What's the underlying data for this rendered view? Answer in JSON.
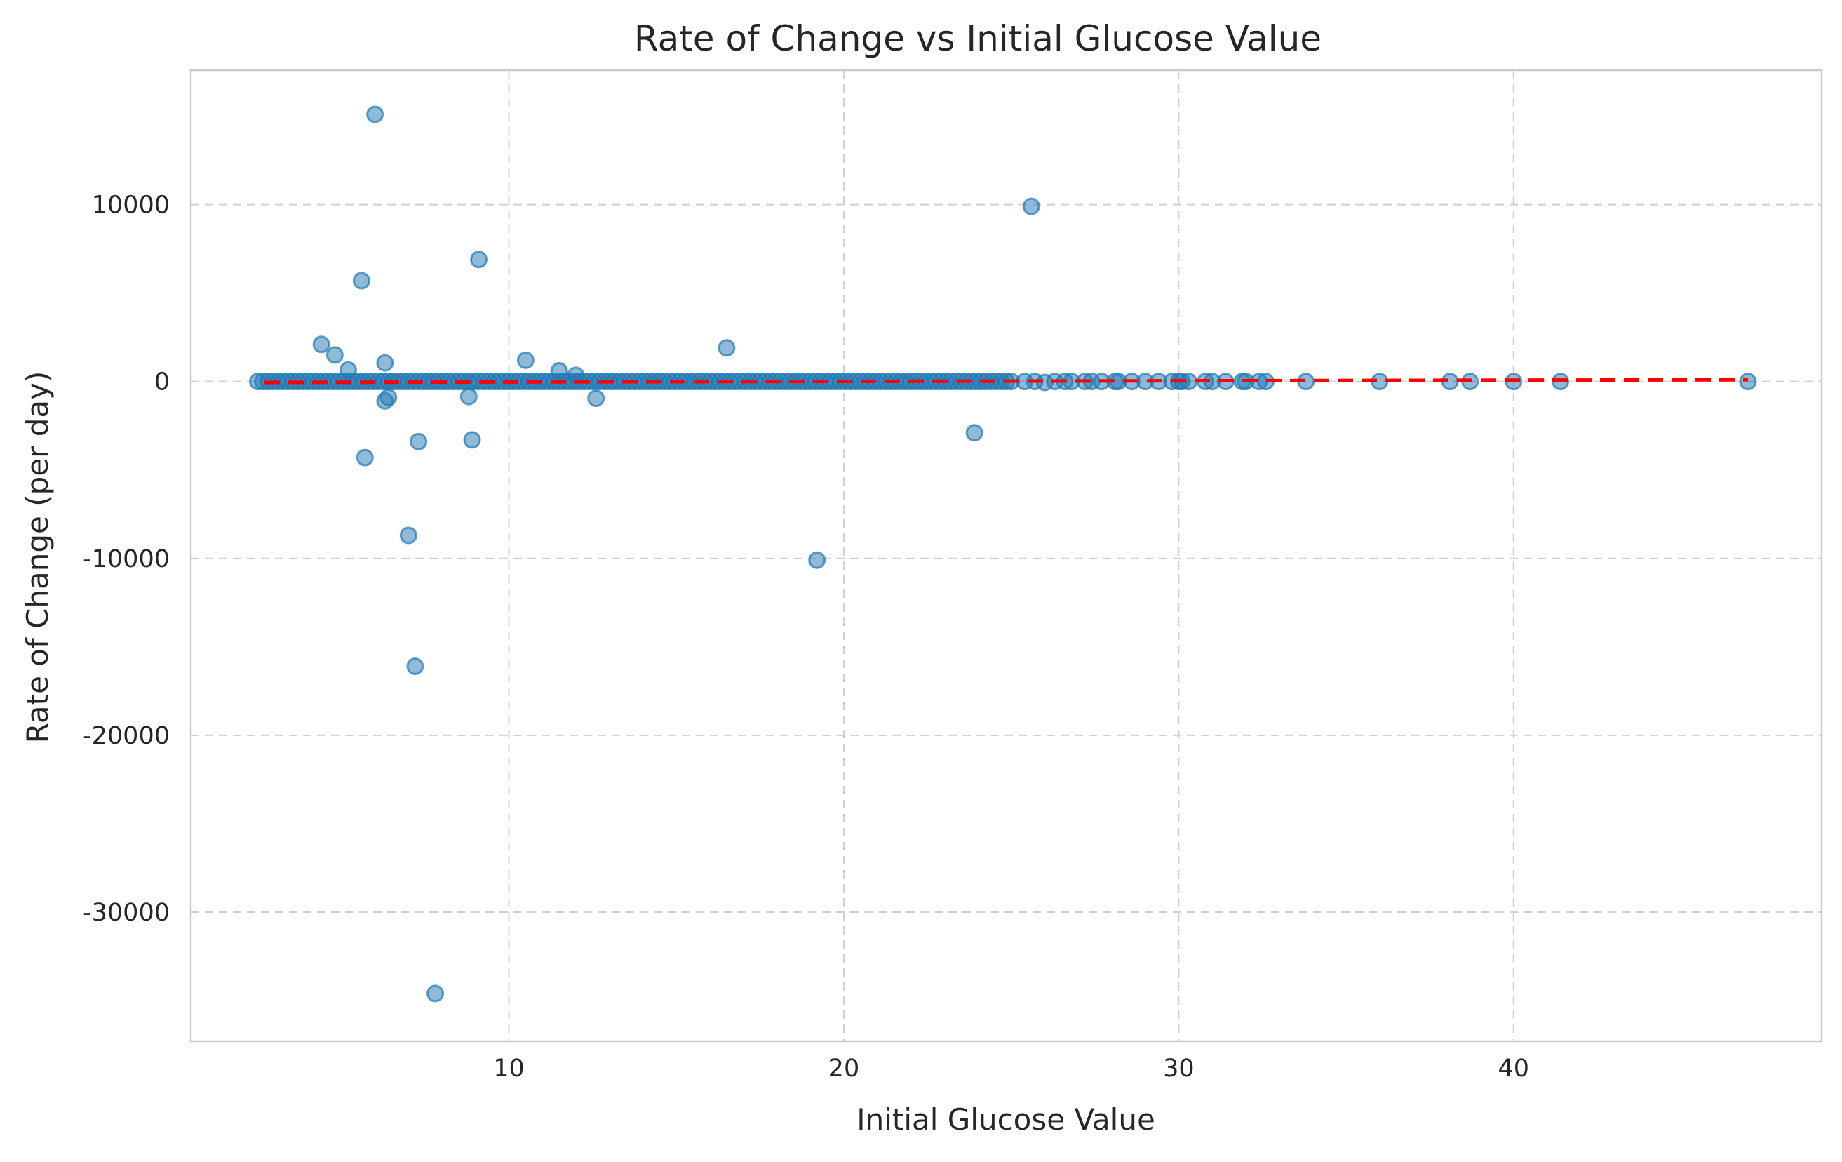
{
  "chart_data": {
    "type": "scatter",
    "title": "Rate of Change vs Initial Glucose Value",
    "xlabel": "Initial Glucose Value",
    "ylabel": "Rate of Change (per day)",
    "xlim": [
      0.5,
      49.2
    ],
    "ylim": [
      -37300,
      17600
    ],
    "x_ticks": [
      10,
      20,
      30,
      40
    ],
    "y_ticks": [
      10000,
      0,
      -10000,
      -20000,
      -30000
    ],
    "x_tick_labels": [
      "10",
      "20",
      "30",
      "40"
    ],
    "y_tick_labels": [
      "10000",
      "0",
      "-10000",
      "-20000",
      "-30000"
    ],
    "grid": true,
    "colors": {
      "points": "#1f77b4",
      "trend": "#ff0000"
    },
    "trend_line": {
      "style": "dashed",
      "x": [
        2.7,
        47.0
      ],
      "y": [
        -50,
        100
      ]
    },
    "points": [
      {
        "x": 6.0,
        "y": 15100
      },
      {
        "x": 25.6,
        "y": 9900
      },
      {
        "x": 9.1,
        "y": 6900
      },
      {
        "x": 5.6,
        "y": 5700
      },
      {
        "x": 4.4,
        "y": 2100
      },
      {
        "x": 16.5,
        "y": 1900
      },
      {
        "x": 4.8,
        "y": 1500
      },
      {
        "x": 10.5,
        "y": 1200
      },
      {
        "x": 6.3,
        "y": 1050
      },
      {
        "x": 5.2,
        "y": 650
      },
      {
        "x": 11.5,
        "y": 600
      },
      {
        "x": 12.0,
        "y": 350
      },
      {
        "x": 8.8,
        "y": -850
      },
      {
        "x": 6.3,
        "y": -1100
      },
      {
        "x": 6.4,
        "y": -900
      },
      {
        "x": 12.6,
        "y": -950
      },
      {
        "x": 23.9,
        "y": -2900
      },
      {
        "x": 8.9,
        "y": -3300
      },
      {
        "x": 7.3,
        "y": -3400
      },
      {
        "x": 5.7,
        "y": -4300
      },
      {
        "x": 7.0,
        "y": -8700
      },
      {
        "x": 19.2,
        "y": -10100
      },
      {
        "x": 7.2,
        "y": -16100
      },
      {
        "x": 7.8,
        "y": -34600
      },
      {
        "x": 25.4,
        "y": 0
      },
      {
        "x": 25.7,
        "y": 0
      },
      {
        "x": 26.0,
        "y": -50
      },
      {
        "x": 26.3,
        "y": 0
      },
      {
        "x": 26.6,
        "y": 0
      },
      {
        "x": 26.8,
        "y": 0
      },
      {
        "x": 27.2,
        "y": 0
      },
      {
        "x": 27.4,
        "y": 0
      },
      {
        "x": 27.7,
        "y": 0
      },
      {
        "x": 28.1,
        "y": 0
      },
      {
        "x": 28.2,
        "y": 0
      },
      {
        "x": 28.6,
        "y": 0
      },
      {
        "x": 29.0,
        "y": 0
      },
      {
        "x": 29.4,
        "y": 0
      },
      {
        "x": 29.8,
        "y": 0
      },
      {
        "x": 30.0,
        "y": 0
      },
      {
        "x": 30.1,
        "y": 0
      },
      {
        "x": 30.3,
        "y": 0
      },
      {
        "x": 30.8,
        "y": 0
      },
      {
        "x": 31.0,
        "y": 0
      },
      {
        "x": 31.4,
        "y": 0
      },
      {
        "x": 31.9,
        "y": 0
      },
      {
        "x": 32.0,
        "y": 0
      },
      {
        "x": 32.4,
        "y": 0
      },
      {
        "x": 32.6,
        "y": 0
      },
      {
        "x": 33.8,
        "y": 0
      },
      {
        "x": 36.0,
        "y": 0
      },
      {
        "x": 38.1,
        "y": 0
      },
      {
        "x": 38.7,
        "y": 0
      },
      {
        "x": 40.0,
        "y": 0
      },
      {
        "x": 41.4,
        "y": 0
      },
      {
        "x": 47.0,
        "y": 0
      }
    ],
    "dense_band": {
      "x_start": 2.5,
      "x_end": 25.0,
      "x_step": 0.15,
      "y": 0
    }
  }
}
